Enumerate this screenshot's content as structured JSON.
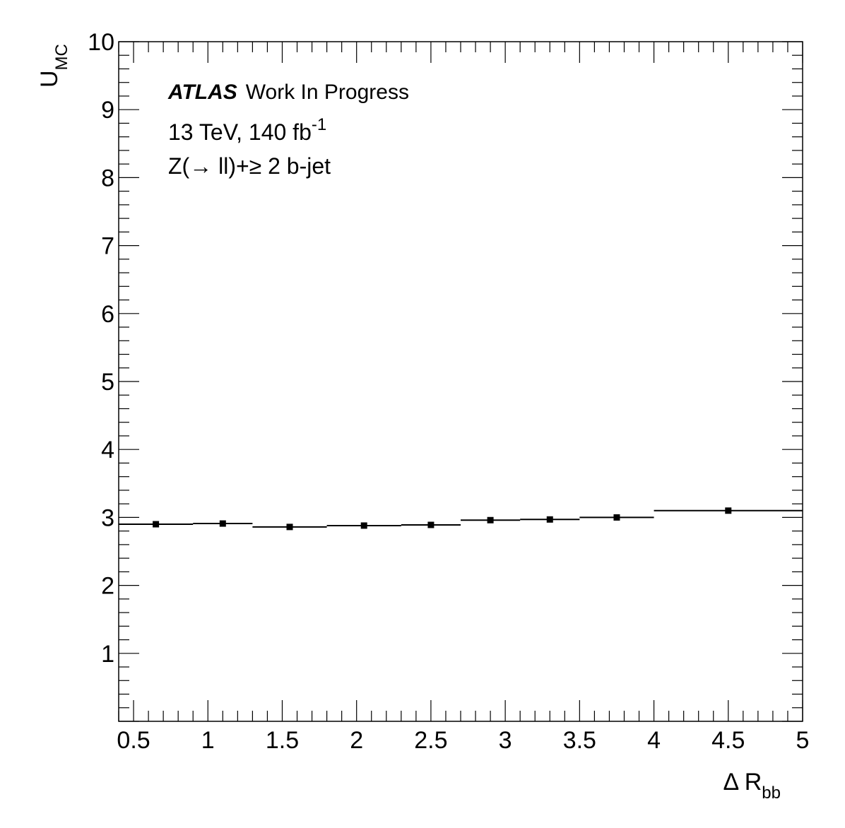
{
  "chart_data": {
    "type": "scatter",
    "style": "histogram-markers",
    "xlabel": {
      "main": "Δ R",
      "sub": "bb"
    },
    "ylabel": {
      "main": "U",
      "sub": "MC"
    },
    "xlim": [
      0.4,
      5.0
    ],
    "ylim": [
      0,
      10
    ],
    "x_ticks": [
      0.5,
      1,
      1.5,
      2,
      2.5,
      3,
      3.5,
      4,
      4.5,
      5
    ],
    "x_tick_labels": [
      "0.5",
      "1",
      "1.5",
      "2",
      "2.5",
      "3",
      "3.5",
      "4",
      "4.5",
      "5"
    ],
    "y_ticks": [
      1,
      2,
      3,
      4,
      5,
      6,
      7,
      8,
      9,
      10
    ],
    "y_tick_labels": [
      "1",
      "2",
      "3",
      "4",
      "5",
      "6",
      "7",
      "8",
      "9",
      "10"
    ],
    "grid": false,
    "bins": [
      {
        "x_low": 0.4,
        "x_high": 0.9,
        "x": 0.65,
        "y": 2.9
      },
      {
        "x_low": 0.9,
        "x_high": 1.3,
        "x": 1.1,
        "y": 2.91
      },
      {
        "x_low": 1.3,
        "x_high": 1.8,
        "x": 1.55,
        "y": 2.86
      },
      {
        "x_low": 1.8,
        "x_high": 2.3,
        "x": 2.05,
        "y": 2.88
      },
      {
        "x_low": 2.3,
        "x_high": 2.7,
        "x": 2.5,
        "y": 2.89
      },
      {
        "x_low": 2.7,
        "x_high": 3.1,
        "x": 2.9,
        "y": 2.96
      },
      {
        "x_low": 3.1,
        "x_high": 3.5,
        "x": 3.3,
        "y": 2.97
      },
      {
        "x_low": 3.5,
        "x_high": 4.0,
        "x": 3.75,
        "y": 3.0
      },
      {
        "x_low": 4.0,
        "x_high": 5.0,
        "x": 4.5,
        "y": 3.1
      }
    ],
    "annotations": {
      "atlas": "ATLAS",
      "status": "Work In Progress",
      "energy": "13 TeV, 140 fb",
      "energy_sup": "-1",
      "selection": "Z(→ ll)+≥ 2 b-jet"
    }
  }
}
